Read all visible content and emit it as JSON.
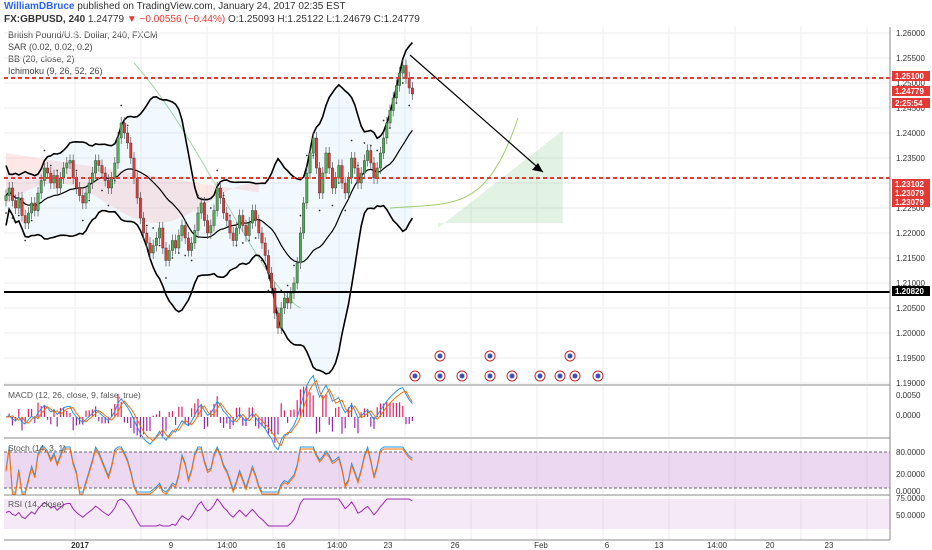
{
  "header": {
    "author": "WilliamDBruce",
    "published": "published on TradingView.com, January 24, 2017 02:35 EST",
    "symbol": "FX:GBPUSD, 240",
    "last": "1.24779",
    "change": "−0.00556 (−0.44%)",
    "ohlc": "O:1.25093 H:1.25122 L:1.24679 C:1.24779"
  },
  "overlays": {
    "title": "British Pound/U.S. Dollar, 240, FXCM",
    "sar": "SAR (0.02, 0.02, 0.2)",
    "bb": "BB (20, close, 2)",
    "ichimoku": "Ichimoku (9, 26, 52, 26)"
  },
  "panes": {
    "macd": "MACD (12, 26, close, 9, false, true)",
    "stoch": "Stoch (14, 3, 1)",
    "rsi": "RSI (14, close)"
  },
  "price_axis": [
    "1.26000",
    "1.25500",
    "1.25000",
    "1.24500",
    "1.24000",
    "1.23500",
    "1.23000",
    "1.22500",
    "1.22000",
    "1.21500",
    "1.21000",
    "1.20500",
    "1.20000",
    "1.19500",
    "1.19000"
  ],
  "macd_axis": [
    "0.0050",
    "0.0000"
  ],
  "stoch_axis": [
    "80.0000",
    "20.0000",
    "0.0000"
  ],
  "rsi_axis": [
    "75.0000",
    "50.0000"
  ],
  "time_axis": [
    "2017",
    "9",
    "14:00",
    "16",
    "14:00",
    "23",
    "26",
    "Feb",
    "6",
    "13",
    "14:00",
    "20",
    "23"
  ],
  "price_tags": [
    {
      "label": "1.25100",
      "color": "#e53935"
    },
    {
      "label": "1.24779",
      "color": "#e53935"
    },
    {
      "label": "2:25:54",
      "color": "#e53935"
    },
    {
      "label": "1.23102",
      "color": "#e53935"
    },
    {
      "label": "1.23079",
      "color": "#e53935"
    },
    {
      "label": "1.23079",
      "color": "#e53935"
    },
    {
      "label": "1.20820",
      "color": "#000000"
    }
  ],
  "chart_data": {
    "type": "candlestick",
    "horizontal_lines": [
      {
        "price": 1.251,
        "style": "dashed",
        "color": "#e53935"
      },
      {
        "price": 1.231,
        "style": "dashed",
        "color": "#e53935"
      },
      {
        "price": 1.2082,
        "style": "solid",
        "color": "#000000"
      }
    ],
    "ylim": [
      1.19,
      1.2605
    ],
    "close_series": [
      1.2275,
      1.229,
      1.2265,
      1.225,
      1.227,
      1.2235,
      1.222,
      1.224,
      1.226,
      1.2245,
      1.228,
      1.2305,
      1.233,
      1.232,
      1.23,
      1.2315,
      1.229,
      1.231,
      1.233,
      1.234,
      1.2345,
      1.231,
      1.229,
      1.2275,
      1.226,
      1.228,
      1.23,
      1.232,
      1.2345,
      1.2335,
      1.232,
      1.2305,
      1.229,
      1.231,
      1.234,
      1.239,
      1.242,
      1.24,
      1.238,
      1.235,
      1.231,
      1.227,
      1.223,
      1.22,
      1.218,
      1.216,
      1.2175,
      1.219,
      1.221,
      1.217,
      1.2145,
      1.2165,
      1.2185,
      1.217,
      1.2195,
      1.2215,
      1.219,
      1.2165,
      1.218,
      1.2205,
      1.224,
      1.226,
      1.2225,
      1.22,
      1.2215,
      1.2245,
      1.229,
      1.227,
      1.224,
      1.2225,
      1.22,
      1.2185,
      1.221,
      1.2235,
      1.2215,
      1.2195,
      1.222,
      1.2245,
      1.2225,
      1.22,
      1.218,
      1.2155,
      1.212,
      1.209,
      1.204,
      1.201,
      1.205,
      1.207,
      1.206,
      1.208,
      1.21,
      1.214,
      1.22,
      1.226,
      1.232,
      1.236,
      1.239,
      1.233,
      1.228,
      1.232,
      1.236,
      1.233,
      1.229,
      1.231,
      1.2335,
      1.23,
      1.228,
      1.231,
      1.235,
      1.233,
      1.23,
      1.232,
      1.2345,
      1.2365,
      1.234,
      1.231,
      1.233,
      1.236,
      1.239,
      1.242,
      1.2445,
      1.247,
      1.2495,
      1.252,
      1.2535,
      1.251,
      1.249,
      1.2478
    ]
  }
}
